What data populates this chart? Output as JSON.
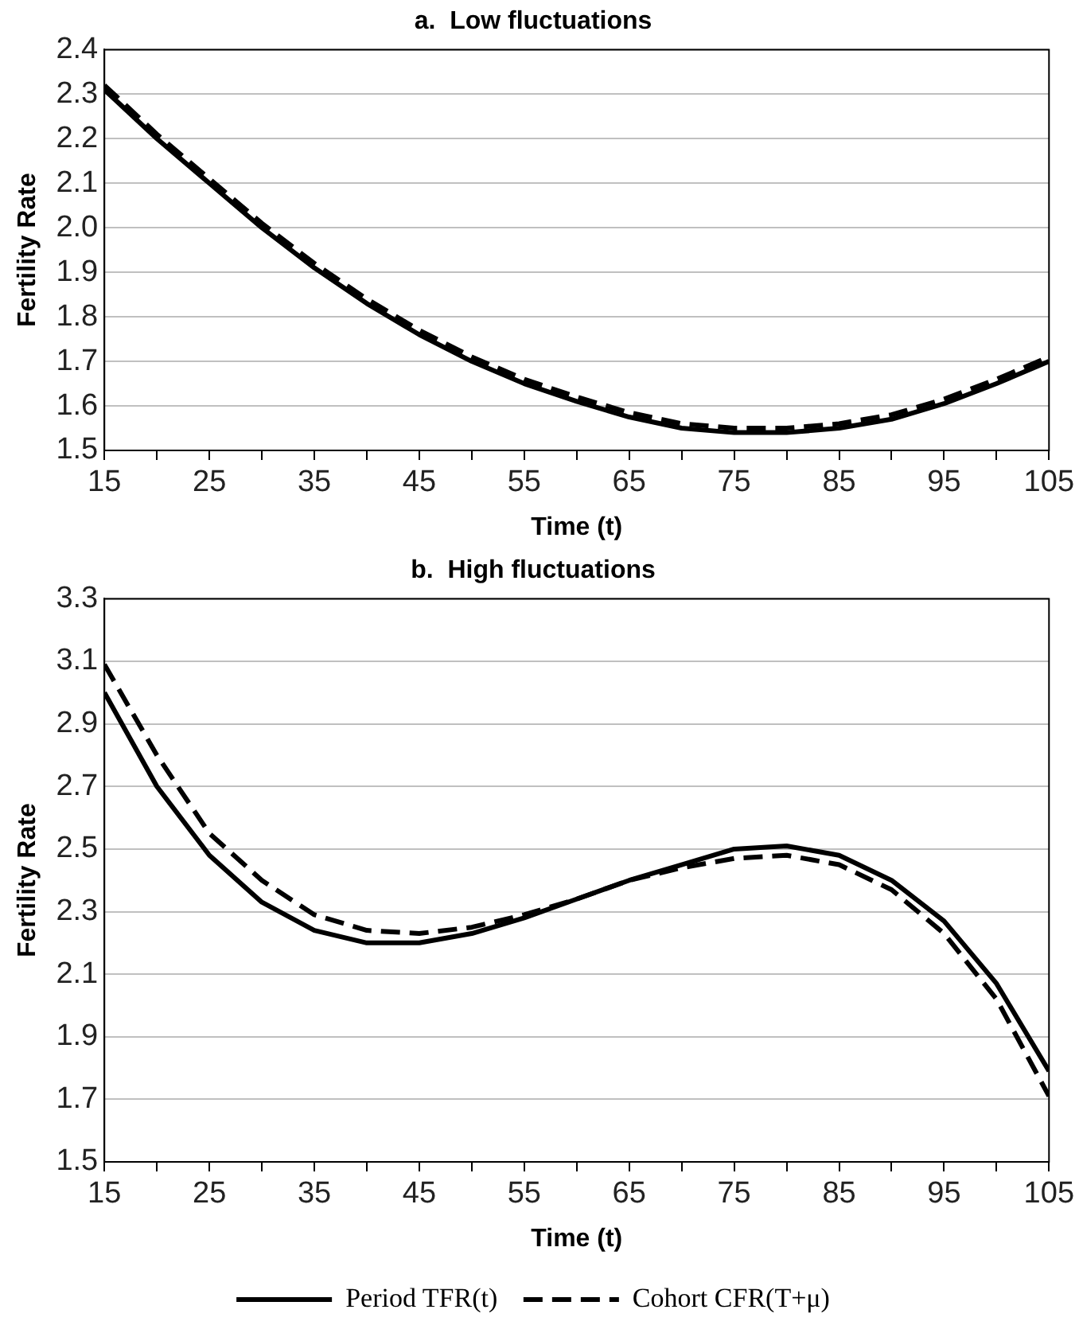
{
  "chart_data": [
    {
      "type": "line",
      "title": "a.  Low fluctuations",
      "xlabel": "Time (t)",
      "ylabel": "Fertility Rate",
      "x": [
        15,
        20,
        25,
        30,
        35,
        40,
        45,
        50,
        55,
        60,
        65,
        70,
        75,
        80,
        85,
        90,
        95,
        100,
        105
      ],
      "series": [
        {
          "color": "#000000",
          "line_style": "solid",
          "values": [
            2.31,
            2.2,
            2.1,
            2.0,
            1.91,
            1.83,
            1.76,
            1.7,
            1.65,
            1.61,
            1.575,
            1.55,
            1.54,
            1.54,
            1.55,
            1.57,
            1.605,
            1.65,
            1.7
          ]
        },
        {
          "color": "#000000",
          "line_style": "dashed",
          "values": [
            2.32,
            2.21,
            2.11,
            2.01,
            1.92,
            1.84,
            1.77,
            1.71,
            1.66,
            1.62,
            1.585,
            1.56,
            1.55,
            1.55,
            1.56,
            1.58,
            1.615,
            1.66,
            1.71
          ]
        }
      ],
      "xlim": [
        15,
        105
      ],
      "xticks": [
        15,
        {
          "value": 20,
          "label": null
        },
        25,
        {
          "value": 30,
          "label": null
        },
        35,
        {
          "value": 40,
          "label": null
        },
        45,
        {
          "value": 50,
          "label": null
        },
        55,
        {
          "value": 60,
          "label": null
        },
        65,
        {
          "value": 70,
          "label": null
        },
        75,
        {
          "value": 80,
          "label": null
        },
        85,
        {
          "value": 90,
          "label": null
        },
        95,
        {
          "value": 100,
          "label": null
        },
        105
      ],
      "ylim": [
        1.5,
        2.4
      ],
      "yticks": [
        {
          "value": 1.5,
          "label": "1.5"
        },
        {
          "value": 1.6,
          "label": "1.6"
        },
        {
          "value": 1.7,
          "label": "1.7"
        },
        {
          "value": 1.8,
          "label": "1.8"
        },
        {
          "value": 1.9,
          "label": "1.9"
        },
        {
          "value": 2.0,
          "label": "2.0"
        },
        {
          "value": 2.1,
          "label": "2.1"
        },
        {
          "value": 2.2,
          "label": "2.2"
        },
        {
          "value": 2.3,
          "label": "2.3"
        },
        {
          "value": 2.4,
          "label": "2.4"
        }
      ],
      "grid": "y",
      "legend": false,
      "marker": "none"
    },
    {
      "type": "line",
      "title": "b.  High fluctuations",
      "xlabel": "Time (t)",
      "ylabel": "Fertility Rate",
      "x": [
        15,
        20,
        25,
        30,
        35,
        40,
        45,
        50,
        55,
        60,
        65,
        70,
        75,
        80,
        85,
        90,
        95,
        100,
        105
      ],
      "series": [
        {
          "name": "Period TFR(t)",
          "color": "#000000",
          "line_style": "solid",
          "values": [
            3.0,
            2.7,
            2.48,
            2.33,
            2.24,
            2.2,
            2.2,
            2.23,
            2.28,
            2.34,
            2.4,
            2.45,
            2.5,
            2.51,
            2.48,
            2.4,
            2.27,
            2.07,
            1.79
          ]
        },
        {
          "name": "Cohort CFR(T+μ)",
          "color": "#000000",
          "line_style": "dashed",
          "values": [
            3.09,
            2.8,
            2.55,
            2.4,
            2.29,
            2.24,
            2.23,
            2.25,
            2.29,
            2.34,
            2.4,
            2.44,
            2.47,
            2.48,
            2.45,
            2.37,
            2.23,
            2.02,
            1.71
          ]
        }
      ],
      "xlim": [
        15,
        105
      ],
      "xticks": [
        15,
        {
          "value": 20,
          "label": null
        },
        25,
        {
          "value": 30,
          "label": null
        },
        35,
        {
          "value": 40,
          "label": null
        },
        45,
        {
          "value": 50,
          "label": null
        },
        55,
        {
          "value": 60,
          "label": null
        },
        65,
        {
          "value": 70,
          "label": null
        },
        75,
        {
          "value": 80,
          "label": null
        },
        85,
        {
          "value": 90,
          "label": null
        },
        95,
        {
          "value": 100,
          "label": null
        },
        105
      ],
      "ylim": [
        1.5,
        3.3
      ],
      "yticks": [
        1.5,
        1.7,
        1.9,
        2.1,
        2.3,
        2.5,
        2.7,
        2.9,
        3.1,
        3.3
      ],
      "grid": "y",
      "legend": "bottom",
      "marker": "none"
    }
  ]
}
